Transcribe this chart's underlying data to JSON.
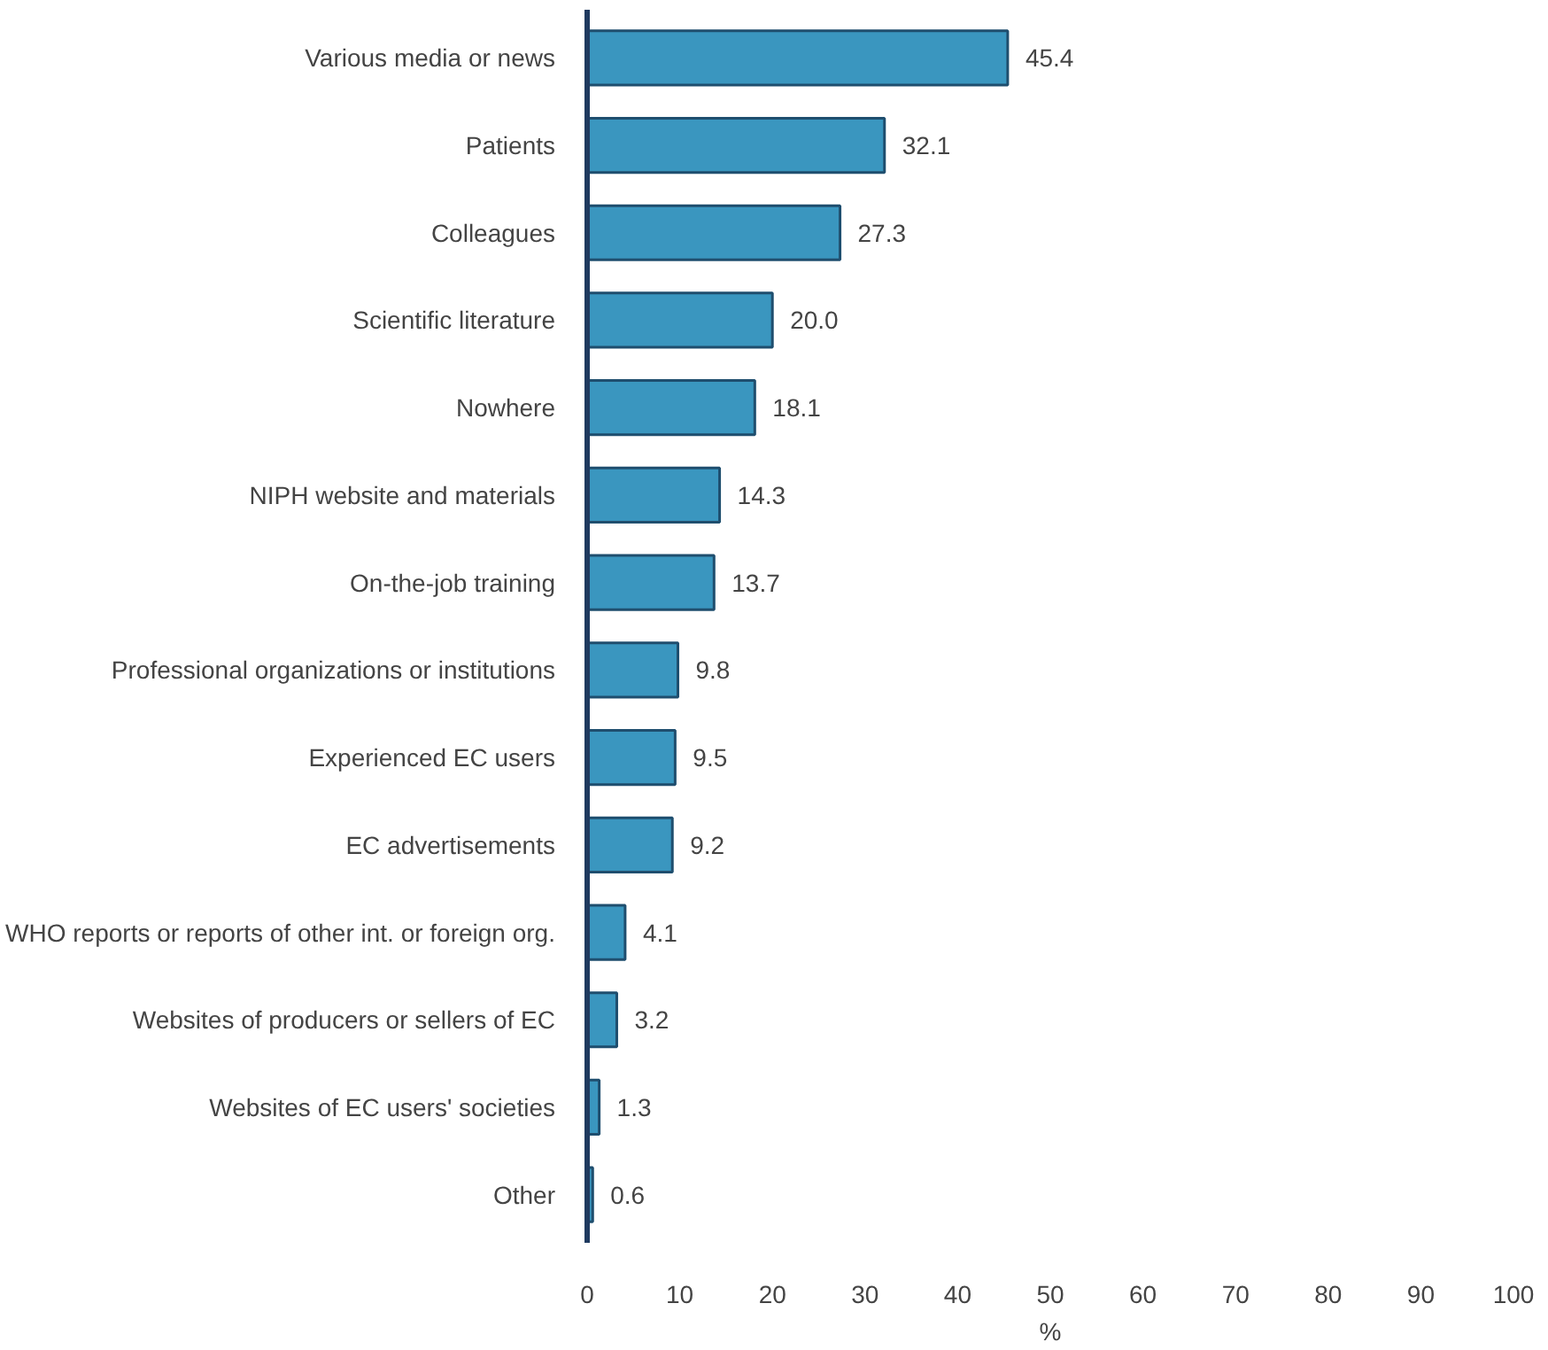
{
  "chart_data": {
    "type": "bar",
    "orientation": "horizontal",
    "xlabel": "%",
    "categories": [
      "Various media or news",
      "Patients",
      "Colleagues",
      "Scientific literature",
      "Nowhere",
      "NIPH website and materials",
      "On-the-job training",
      "Professional organizations or institutions",
      "Experienced EC users",
      "EC advertisements",
      "WHO reports or reports of other int. or foreign org.",
      "Websites of producers or sellers of EC",
      "Websites of EC users' societies",
      "Other"
    ],
    "values": [
      45.4,
      32.1,
      27.3,
      20.0,
      18.1,
      14.3,
      13.7,
      9.8,
      9.5,
      9.2,
      4.1,
      3.2,
      1.3,
      0.6
    ],
    "value_labels": [
      "45.4",
      "32.1",
      "27.3",
      "20.0",
      "18.1",
      "14.3",
      "13.7",
      "9.8",
      "9.5",
      "9.2",
      "4.1",
      "3.2",
      "1.3",
      "0.6"
    ],
    "color": "#3a96bf",
    "xlim": [
      0,
      100
    ],
    "xticks": [
      0,
      10,
      20,
      30,
      40,
      50,
      60,
      70,
      80,
      90,
      100
    ],
    "grid": false
  }
}
